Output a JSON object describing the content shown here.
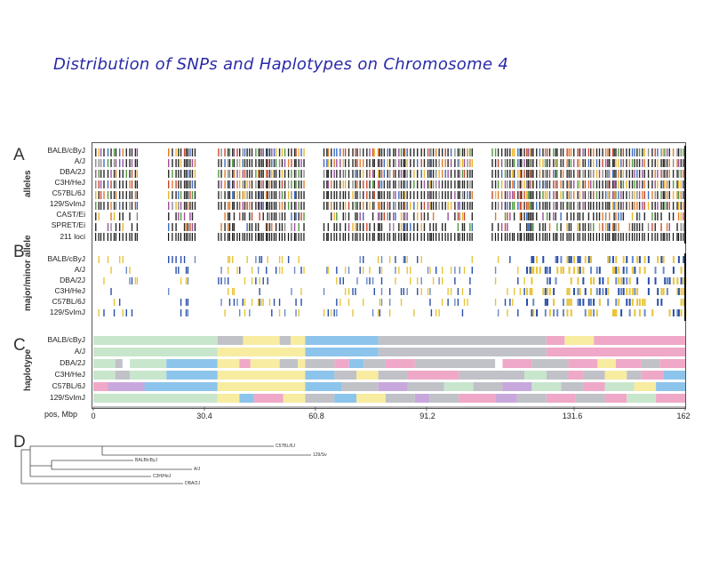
{
  "title": "Distribution of SNPs and Haplotypes on Chromosome 4",
  "panels": {
    "a": {
      "letter": "A",
      "label": "alleles",
      "rows": [
        "BALB/cByJ",
        "A/J",
        "DBA/2J",
        "C3H/HeJ",
        "C57BL/6J",
        "129/SvImJ",
        "CAST/Ei",
        "SPRET/Ei",
        "211 loci"
      ]
    },
    "b": {
      "letter": "B",
      "label": "major/minor allele",
      "rows": [
        "BALB/cByJ",
        "A/J",
        "DBA/2J",
        "C3H/HeJ",
        "C57BL/6J",
        "129/SvImJ"
      ]
    },
    "c": {
      "letter": "C",
      "label": "haplotype",
      "rows": [
        "BALB/cByJ",
        "A/J",
        "DBA/2J",
        "C3H/HeJ",
        "C57BL/6J",
        "129/SvImJ"
      ]
    },
    "d": {
      "letter": "D",
      "tree": [
        "C57BL/6J",
        "129/Sv",
        "BALB/cByJ",
        "A/J",
        "C3H/HeJ",
        "DBA/2J"
      ]
    }
  },
  "axis": {
    "label": "pos, Mbp",
    "max": 162,
    "ticks": [
      {
        "value": 0,
        "label": "0"
      },
      {
        "value": 30.4,
        "label": "30.4"
      },
      {
        "value": 60.8,
        "label": "60.8"
      },
      {
        "value": 91.2,
        "label": "91.2"
      },
      {
        "value": 131.6,
        "label": "131.6"
      },
      {
        "value": 162,
        "label": "162"
      }
    ]
  },
  "colors": {
    "allele_palette": [
      "#2a2a2a",
      "#c8462e",
      "#e8b32a",
      "#3b6cc4",
      "#4f9a3c",
      "#8a8a8a",
      "#9b4f9b",
      "#e07a2a"
    ],
    "minor_palette": [
      "#e8c43a",
      "#2a4fa8",
      "#2a4fa8",
      "#e8c43a",
      "#6a8ac8"
    ],
    "haplotype": {
      "green": "#c8e6cc",
      "grey": "#c0c2c8",
      "yellow": "#f7eca0",
      "blue": "#8cc4ec",
      "pink": "#f0a8c8",
      "purple": "#c8a8dc",
      "white": "#ffffff"
    },
    "title": "#2a2aa8"
  },
  "haplotype_blocks": [
    [
      [
        0,
        34,
        "green"
      ],
      [
        34,
        41,
        "grey"
      ],
      [
        41,
        51,
        "yellow"
      ],
      [
        51,
        54,
        "grey"
      ],
      [
        54,
        58,
        "yellow"
      ],
      [
        58,
        78,
        "blue"
      ],
      [
        78,
        124,
        "grey"
      ],
      [
        124,
        129,
        "pink"
      ],
      [
        129,
        137,
        "yellow"
      ],
      [
        137,
        162,
        "pink"
      ]
    ],
    [
      [
        0,
        34,
        "green"
      ],
      [
        34,
        58,
        "yellow"
      ],
      [
        58,
        78,
        "blue"
      ],
      [
        78,
        124,
        "grey"
      ],
      [
        124,
        162,
        "pink"
      ]
    ],
    [
      [
        0,
        6,
        "green"
      ],
      [
        6,
        8,
        "grey"
      ],
      [
        8,
        10,
        "white"
      ],
      [
        10,
        20,
        "green"
      ],
      [
        20,
        34,
        "blue"
      ],
      [
        34,
        40,
        "yellow"
      ],
      [
        40,
        43,
        "pink"
      ],
      [
        43,
        51,
        "yellow"
      ],
      [
        51,
        56,
        "grey"
      ],
      [
        56,
        58,
        "yellow"
      ],
      [
        58,
        66,
        "grey"
      ],
      [
        66,
        70,
        "pink"
      ],
      [
        70,
        74,
        "blue"
      ],
      [
        74,
        80,
        "grey"
      ],
      [
        80,
        88,
        "pink"
      ],
      [
        88,
        110,
        "grey"
      ],
      [
        110,
        112,
        "white"
      ],
      [
        112,
        120,
        "pink"
      ],
      [
        120,
        130,
        "grey"
      ],
      [
        130,
        138,
        "pink"
      ],
      [
        138,
        143,
        "yellow"
      ],
      [
        143,
        150,
        "pink"
      ],
      [
        150,
        155,
        "grey"
      ],
      [
        155,
        162,
        "pink"
      ]
    ],
    [
      [
        0,
        6,
        "green"
      ],
      [
        6,
        10,
        "grey"
      ],
      [
        10,
        20,
        "green"
      ],
      [
        20,
        34,
        "blue"
      ],
      [
        34,
        58,
        "yellow"
      ],
      [
        58,
        66,
        "blue"
      ],
      [
        66,
        72,
        "grey"
      ],
      [
        72,
        78,
        "yellow"
      ],
      [
        78,
        86,
        "grey"
      ],
      [
        86,
        100,
        "pink"
      ],
      [
        100,
        118,
        "grey"
      ],
      [
        118,
        124,
        "green"
      ],
      [
        124,
        130,
        "grey"
      ],
      [
        130,
        134,
        "pink"
      ],
      [
        134,
        140,
        "grey"
      ],
      [
        140,
        146,
        "yellow"
      ],
      [
        146,
        150,
        "grey"
      ],
      [
        150,
        156,
        "pink"
      ],
      [
        156,
        162,
        "blue"
      ]
    ],
    [
      [
        0,
        4,
        "pink"
      ],
      [
        4,
        14,
        "purple"
      ],
      [
        14,
        34,
        "blue"
      ],
      [
        34,
        58,
        "yellow"
      ],
      [
        58,
        68,
        "blue"
      ],
      [
        68,
        78,
        "grey"
      ],
      [
        78,
        86,
        "purple"
      ],
      [
        86,
        96,
        "grey"
      ],
      [
        96,
        104,
        "green"
      ],
      [
        104,
        112,
        "grey"
      ],
      [
        112,
        120,
        "purple"
      ],
      [
        120,
        128,
        "green"
      ],
      [
        128,
        134,
        "grey"
      ],
      [
        134,
        140,
        "pink"
      ],
      [
        140,
        148,
        "green"
      ],
      [
        148,
        154,
        "yellow"
      ],
      [
        154,
        162,
        "blue"
      ]
    ],
    [
      [
        0,
        34,
        "green"
      ],
      [
        34,
        40,
        "yellow"
      ],
      [
        40,
        44,
        "blue"
      ],
      [
        44,
        52,
        "pink"
      ],
      [
        52,
        58,
        "yellow"
      ],
      [
        58,
        66,
        "grey"
      ],
      [
        66,
        72,
        "blue"
      ],
      [
        72,
        80,
        "yellow"
      ],
      [
        80,
        88,
        "grey"
      ],
      [
        88,
        92,
        "purple"
      ],
      [
        92,
        100,
        "grey"
      ],
      [
        100,
        110,
        "pink"
      ],
      [
        110,
        116,
        "purple"
      ],
      [
        116,
        124,
        "grey"
      ],
      [
        124,
        132,
        "pink"
      ],
      [
        132,
        140,
        "grey"
      ],
      [
        140,
        146,
        "pink"
      ],
      [
        146,
        154,
        "green"
      ],
      [
        154,
        162,
        "pink"
      ]
    ]
  ]
}
